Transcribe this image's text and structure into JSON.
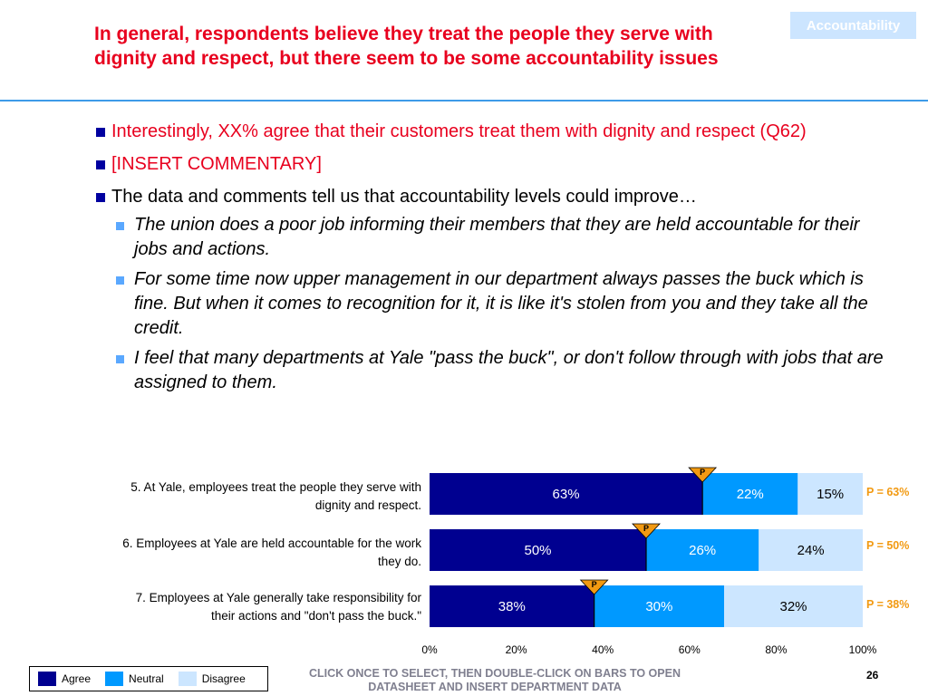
{
  "tag": "Accountability",
  "title": "In general, respondents believe they treat the people they serve with dignity and respect, but there seem to be some accountability issues",
  "bullets": {
    "b1": "Interestingly, XX% agree that their customers treat them with dignity and respect (Q62)",
    "b2": "[INSERT COMMENTARY]",
    "b3": "The data and comments tell us that accountability levels could improve…",
    "sub": [
      "The union does a poor job informing their members that they are held accountable for their jobs and actions.",
      "For some time now upper management in our department always passes the buck which is fine. But when it comes to recognition for it, it is like it's stolen from you and they take all the credit.",
      "I feel that many departments at Yale \"pass the buck\", or don't follow through with jobs that are assigned to them."
    ]
  },
  "chart_data": {
    "type": "bar",
    "orientation": "horizontal",
    "stacked": true,
    "categories": [
      "5. At Yale, employees treat the people they serve with dignity and respect.",
      "6. Employees at Yale are held accountable for the work they do.",
      "7. Employees at Yale generally take responsibility for their actions and \"don't pass the buck.\""
    ],
    "series": [
      {
        "name": "Agree",
        "values": [
          63,
          50,
          38
        ],
        "labels": [
          "63%",
          "50%",
          "38%"
        ],
        "color": "#000090",
        "text_color": "#ffffff"
      },
      {
        "name": "Neutral",
        "values": [
          22,
          26,
          30
        ],
        "labels": [
          "22%",
          "26%",
          "30%"
        ],
        "color": "#0099ff",
        "text_color": "#ffffff"
      },
      {
        "name": "Disagree",
        "values": [
          15,
          24,
          32
        ],
        "labels": [
          "15%",
          "24%",
          "32%"
        ],
        "color": "#cce6ff",
        "text_color": "#000000"
      }
    ],
    "benchmark": {
      "marker": "P",
      "values": [
        63,
        50,
        38
      ],
      "labels": [
        "P = 63%",
        "P = 50%",
        "P = 38%"
      ],
      "color": "#f29a12"
    },
    "xlim": [
      0,
      100
    ],
    "xticks": [
      "0%",
      "20%",
      "40%",
      "60%",
      "80%",
      "100%"
    ],
    "legend_position": "bottom-left"
  },
  "footer": "CLICK ONCE TO SELECT, THEN DOUBLE-CLICK ON BARS TO OPEN DATASHEET AND INSERT DEPARTMENT DATA",
  "page_number": "26"
}
